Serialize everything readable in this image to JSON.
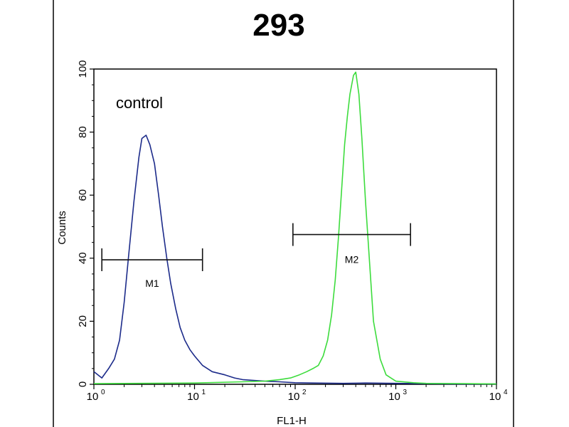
{
  "chart_data": {
    "type": "line",
    "title": "293",
    "xlabel": "FL1-H",
    "ylabel": "Counts",
    "x_scale": "log",
    "xlim": [
      1,
      10000
    ],
    "ylim": [
      0,
      100
    ],
    "x_ticks": [
      {
        "base": "10",
        "exp": "0"
      },
      {
        "base": "10",
        "exp": "1"
      },
      {
        "base": "10",
        "exp": "2"
      },
      {
        "base": "10",
        "exp": "3"
      },
      {
        "base": "10",
        "exp": "4"
      }
    ],
    "y_ticks": [
      "0",
      "20",
      "40",
      "60",
      "80",
      "100"
    ],
    "grid": false,
    "annotation": "control",
    "series": [
      {
        "color": "#1c2b8a",
        "x": [
          1.0,
          1.2,
          1.4,
          1.6,
          1.8,
          2.0,
          2.2,
          2.5,
          2.8,
          3.0,
          3.3,
          3.6,
          4.0,
          4.4,
          4.8,
          5.3,
          5.8,
          6.5,
          7.2,
          8.0,
          9.0,
          10,
          12,
          15,
          20,
          25,
          30,
          40,
          50,
          70,
          100,
          150,
          300,
          500,
          1000,
          2000,
          5000,
          10000
        ],
        "y": [
          4,
          2,
          5,
          8,
          14,
          26,
          40,
          58,
          72,
          78,
          79,
          76,
          70,
          60,
          50,
          40,
          32,
          24,
          18,
          14,
          11,
          9,
          6,
          4,
          3,
          2,
          1.5,
          1.2,
          1,
          0.8,
          0.5,
          0.4,
          0.3,
          0.4,
          0.3,
          0.2,
          0.1,
          0.1
        ]
      },
      {
        "color": "#3ddc3d",
        "x": [
          1,
          10,
          30,
          50,
          70,
          90,
          110,
          130,
          150,
          170,
          190,
          210,
          230,
          250,
          270,
          290,
          310,
          330,
          350,
          380,
          400,
          430,
          460,
          500,
          550,
          600,
          700,
          800,
          1000,
          1500,
          2000,
          5000,
          10000
        ],
        "y": [
          0.2,
          0.4,
          0.8,
          1,
          1.5,
          2,
          3,
          4,
          5,
          6,
          9,
          14,
          22,
          33,
          47,
          62,
          76,
          85,
          92,
          98,
          99,
          92,
          78,
          58,
          38,
          20,
          8,
          3,
          1,
          0.5,
          0.3,
          0.2,
          0.1
        ]
      }
    ],
    "markers": [
      {
        "label": "M1",
        "x_start": 1.2,
        "x_end": 12
      },
      {
        "label": "M2",
        "x_start": 95,
        "x_end": 1400
      }
    ]
  }
}
